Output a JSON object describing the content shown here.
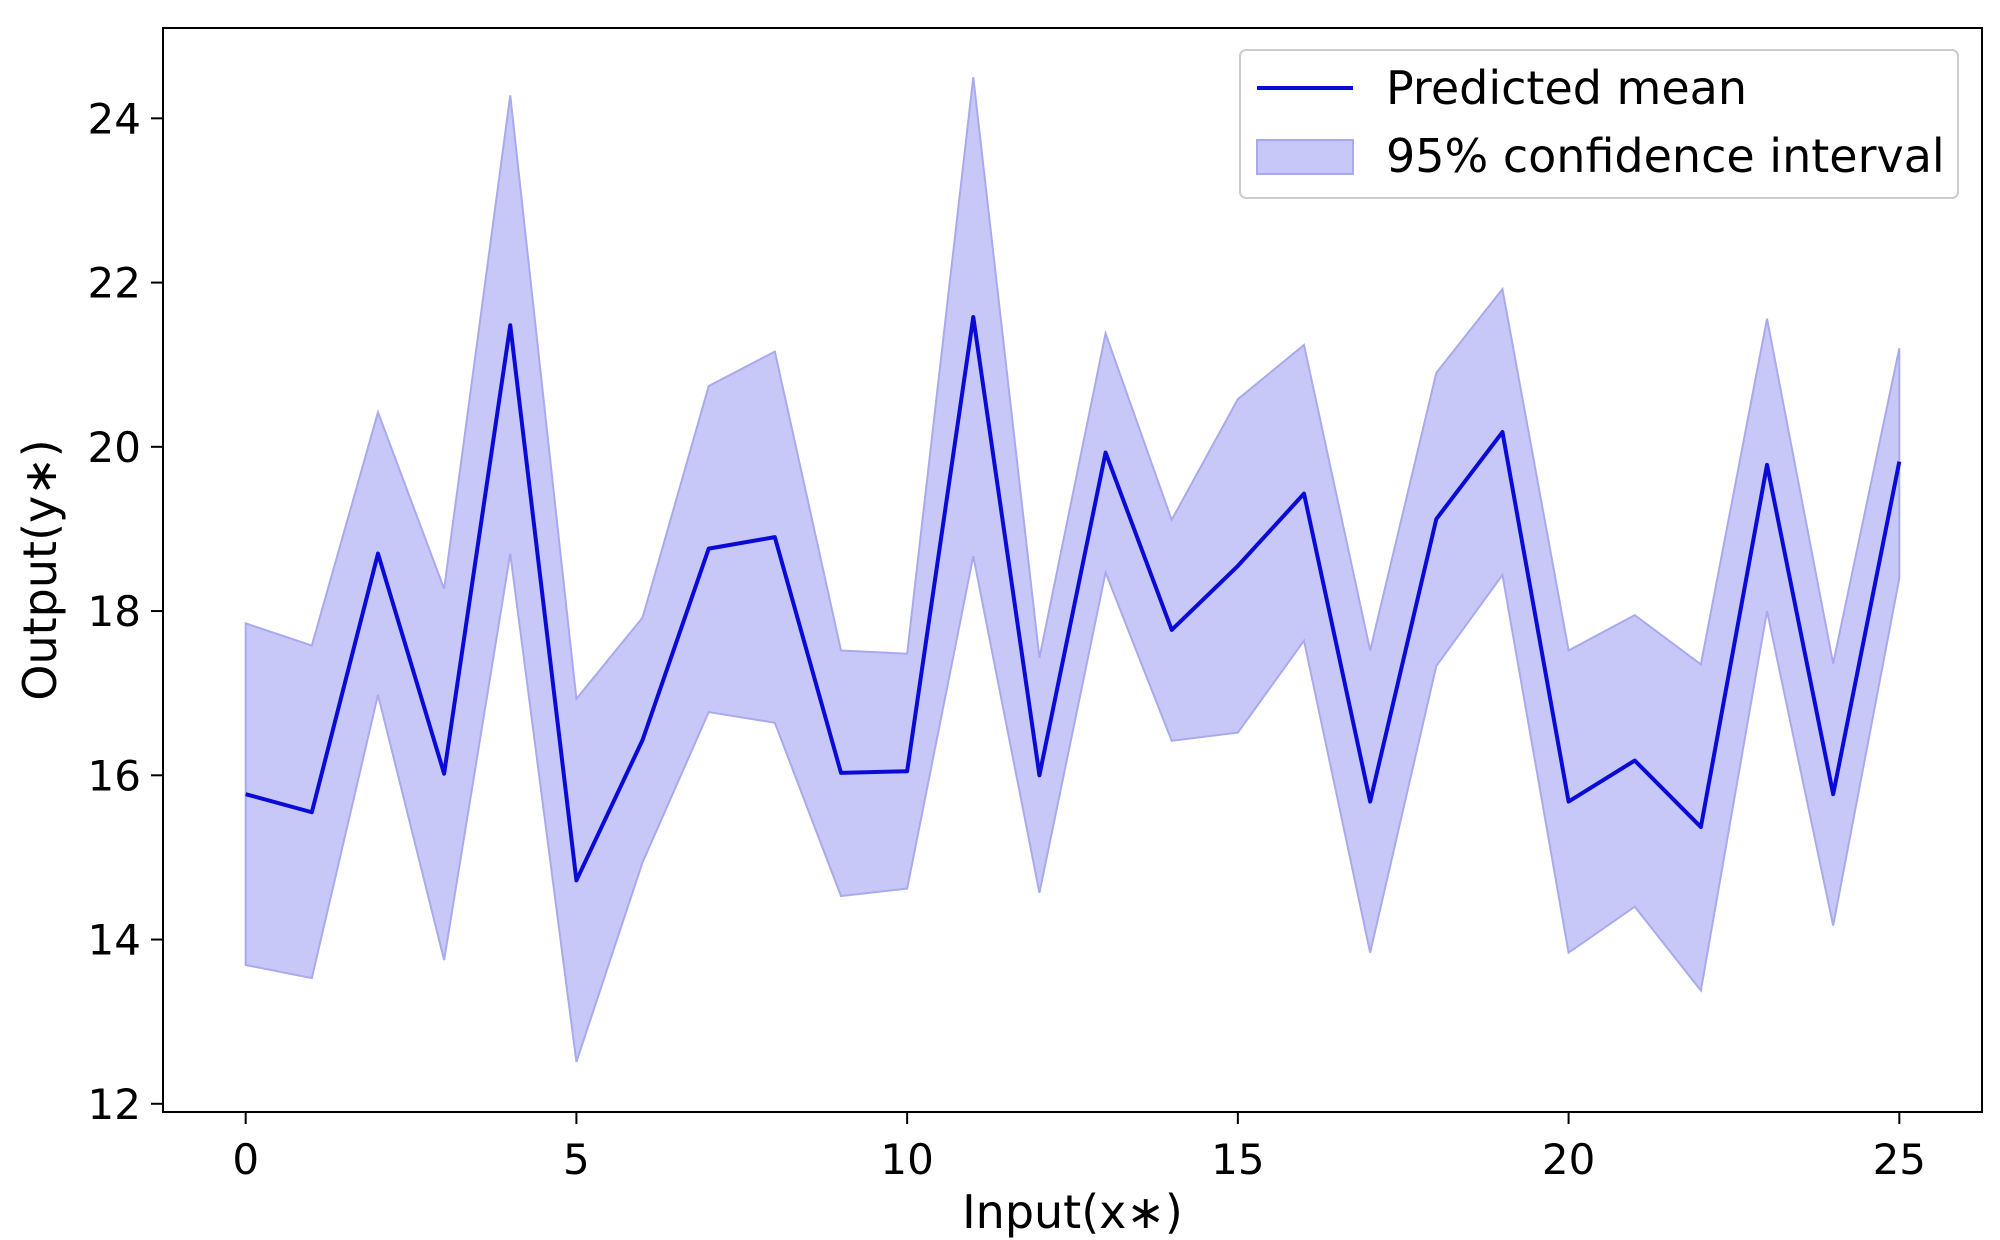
{
  "chart_data": {
    "type": "line",
    "title": "",
    "xlabel": "Input(x∗)",
    "ylabel": "Output(y∗)",
    "xlim": [
      -1.25,
      26.25
    ],
    "ylim": [
      11.9,
      25.1
    ],
    "xticks": [
      0,
      5,
      10,
      15,
      20,
      25
    ],
    "yticks": [
      12,
      14,
      16,
      18,
      20,
      22,
      24
    ],
    "grid": false,
    "legend_position": "top-right",
    "colors": {
      "mean": "#0a0ad6",
      "band_fill": "#c8c8f8",
      "band_edge": "#a9a9ee"
    },
    "x": [
      0,
      1,
      2,
      3,
      4,
      5,
      6,
      7,
      8,
      9,
      10,
      11,
      12,
      13,
      14,
      15,
      16,
      17,
      18,
      19,
      20,
      21,
      22,
      23,
      24,
      25
    ],
    "series": [
      {
        "name": "Predicted mean",
        "kind": "line",
        "values": [
          15.77,
          15.55,
          18.7,
          16.02,
          21.48,
          14.72,
          16.43,
          18.76,
          18.9,
          16.03,
          16.05,
          21.58,
          16.0,
          19.93,
          17.77,
          18.55,
          19.43,
          15.68,
          19.12,
          20.18,
          15.68,
          16.18,
          15.37,
          19.78,
          15.77,
          19.82
        ]
      },
      {
        "name": "95% confidence interval",
        "kind": "band",
        "lower": [
          13.69,
          13.53,
          16.98,
          13.75,
          18.7,
          12.51,
          14.94,
          16.77,
          16.64,
          14.53,
          14.62,
          18.67,
          14.57,
          18.47,
          16.42,
          16.52,
          17.64,
          13.84,
          17.33,
          18.44,
          13.84,
          14.4,
          13.38,
          18.0,
          14.17,
          18.4
        ],
        "upper": [
          17.85,
          17.58,
          20.42,
          18.27,
          24.28,
          16.93,
          17.92,
          20.74,
          21.16,
          17.52,
          17.48,
          24.5,
          17.43,
          21.38,
          19.11,
          20.58,
          21.24,
          17.52,
          20.9,
          21.92,
          17.52,
          17.95,
          17.35,
          21.56,
          17.36,
          21.2
        ]
      }
    ]
  }
}
